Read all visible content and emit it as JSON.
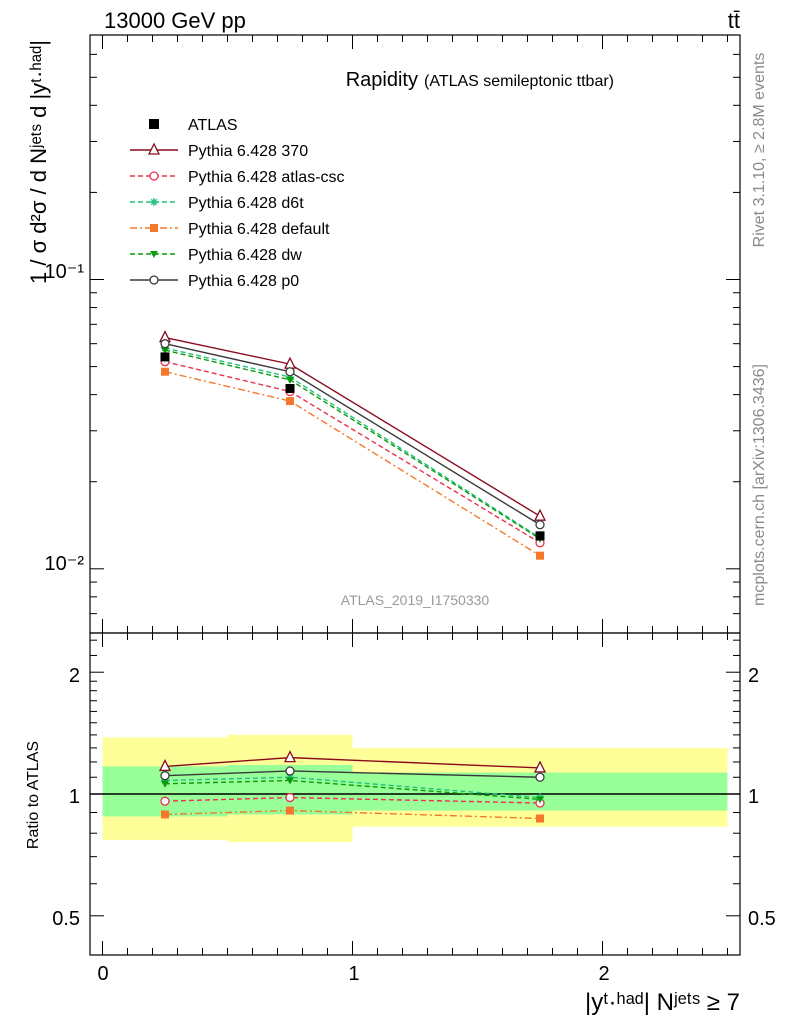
{
  "header": {
    "energy": "13000 GeV pp",
    "process": "tt̄"
  },
  "side_labels": {
    "rivet": "Rivet 3.1.10, ≥ 2.8M events",
    "mcplots": "mcplots.cern.ch [arXiv:1306.3436]"
  },
  "main": {
    "title": "Rapidity",
    "subtitle": "(ATLAS semileptonic ttbar)",
    "ylabel": "1 / σ d²σ / d Nʲᵉᵗˢ d |yᵗ·ʰᵃᵈ|",
    "analysis": "ATLAS_2019_I1750330",
    "ytick_labels": [
      "10⁻²",
      "10⁻¹"
    ]
  },
  "ratio": {
    "ylabel": "Ratio to ATLAS",
    "ytick_labels": [
      "0.5",
      "1",
      "2"
    ]
  },
  "xaxis": {
    "label": "|yᵗ·ʰᵃᵈ| Nʲᵉᵗˢ ≥ 7",
    "tick_labels": [
      "0",
      "1",
      "2"
    ]
  },
  "legend": [
    {
      "name": "ATLAS",
      "color": "#000000",
      "marker": "filled-square",
      "dash": "none"
    },
    {
      "name": "Pythia 6.428 370",
      "color": "#8b0b1e",
      "marker": "open-triangle",
      "dash": "solid"
    },
    {
      "name": "Pythia 6.428 atlas-csc",
      "color": "#e8334f",
      "marker": "open-circle",
      "dash": "dashed"
    },
    {
      "name": "Pythia 6.428 d6t",
      "color": "#1ec47a",
      "marker": "star",
      "dash": "dashed"
    },
    {
      "name": "Pythia 6.428 default",
      "color": "#f5782a",
      "marker": "filled-square",
      "dash": "dashdot"
    },
    {
      "name": "Pythia 6.428 dw",
      "color": "#0b9a0b",
      "marker": "filled-triangle-down",
      "dash": "dashed"
    },
    {
      "name": "Pythia 6.428 p0",
      "color": "#3a3a3a",
      "marker": "open-circle",
      "dash": "solid"
    }
  ],
  "chart_data": {
    "type": "line",
    "log_y": true,
    "x": [
      0.25,
      0.75,
      1.75
    ],
    "xlim": [
      -0.05,
      2.55
    ],
    "ylim": [
      0.006,
      0.7
    ],
    "bin_edges": [
      0,
      0.5,
      1.0,
      2.5
    ],
    "data": {
      "name": "ATLAS",
      "values": [
        0.054,
        0.042,
        0.013
      ],
      "band_green": [
        [
          0.88,
          1.17
        ],
        [
          0.89,
          1.18
        ],
        [
          0.91,
          1.13
        ]
      ],
      "band_yellow": [
        [
          0.77,
          1.38
        ],
        [
          0.76,
          1.4
        ],
        [
          0.83,
          1.3
        ]
      ]
    },
    "series": [
      {
        "name": "Pythia 6.428 370",
        "values": [
          0.063,
          0.051,
          0.0152
        ],
        "ratio": [
          1.17,
          1.23,
          1.16
        ]
      },
      {
        "name": "Pythia 6.428 atlas-csc",
        "values": [
          0.052,
          0.041,
          0.0123
        ],
        "ratio": [
          0.96,
          0.98,
          0.95
        ]
      },
      {
        "name": "Pythia 6.428 d6t",
        "values": [
          0.058,
          0.046,
          0.0128
        ],
        "ratio": [
          1.08,
          1.1,
          0.98
        ]
      },
      {
        "name": "Pythia 6.428 default",
        "values": [
          0.048,
          0.038,
          0.0111
        ],
        "ratio": [
          0.89,
          0.91,
          0.87
        ]
      },
      {
        "name": "Pythia 6.428 dw",
        "values": [
          0.057,
          0.045,
          0.0127
        ],
        "ratio": [
          1.06,
          1.08,
          0.97
        ]
      },
      {
        "name": "Pythia 6.428 p0",
        "values": [
          0.06,
          0.048,
          0.0142
        ],
        "ratio": [
          1.11,
          1.14,
          1.1
        ]
      }
    ],
    "ratio_ylim": [
      0.4,
      2.5
    ],
    "ratio_log_y": true,
    "xlabel": "|yᵗ·ʰᵃᵈ| Nʲᵉᵗˢ ≥ 7",
    "ylabel": "1 / σ d²σ / d Nʲᵉᵗˢ d |yᵗ·ʰᵃᵈ|",
    "title": "Rapidity",
    "legend_position": "top-left"
  }
}
